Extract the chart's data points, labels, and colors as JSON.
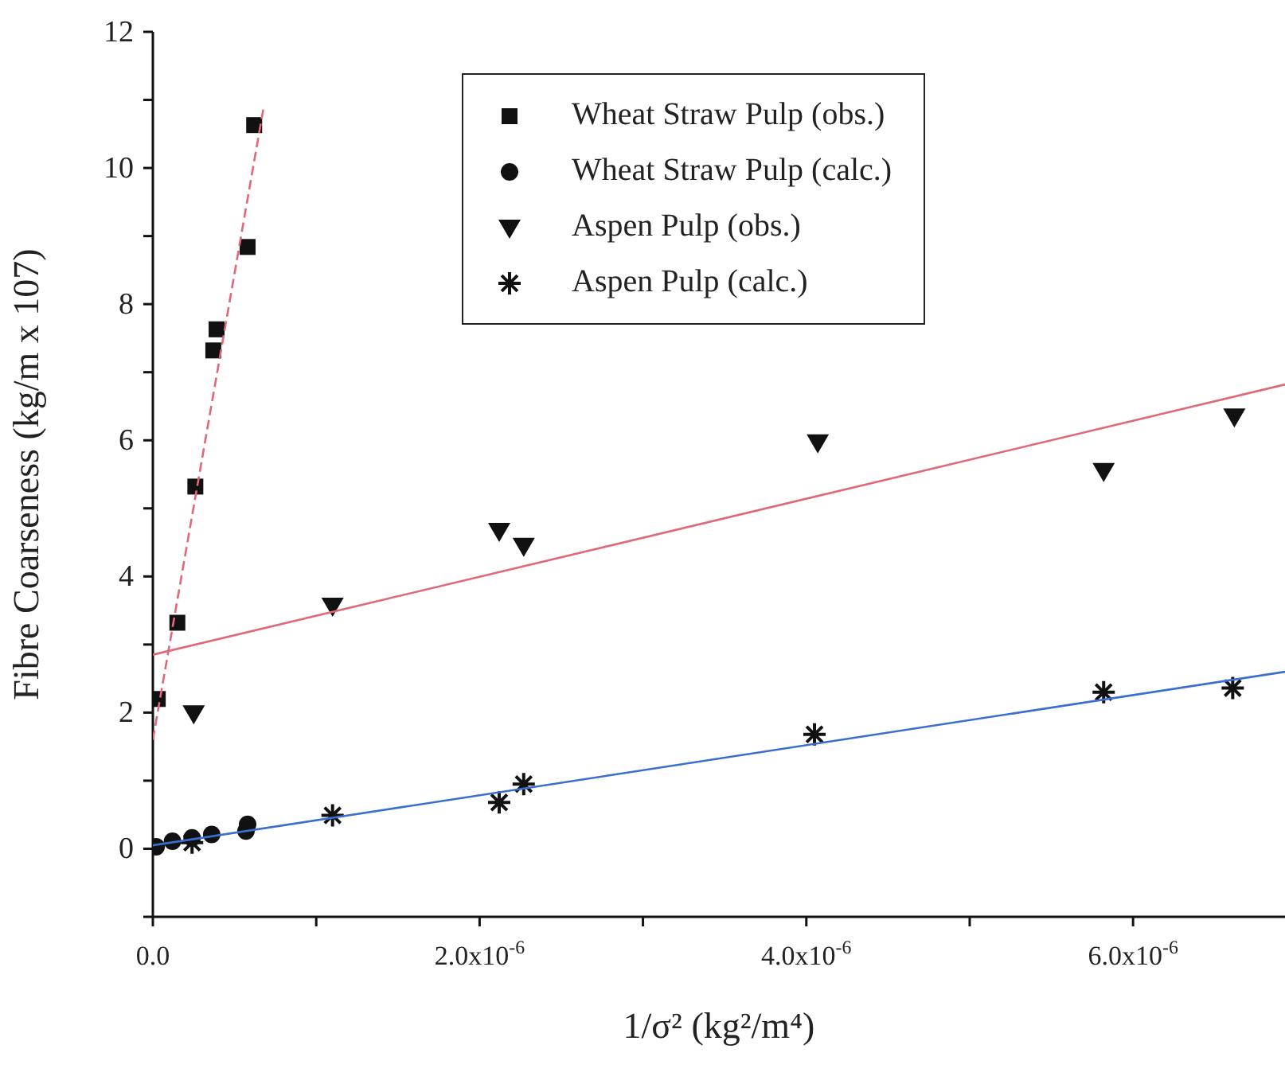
{
  "chart_data": {
    "type": "scatter",
    "xlabel": "1/σ² (kg²/m⁴)",
    "ylabel": "Fibre Coarseness (kg/m x 107)",
    "xlim": [
      0,
      6.93e-06
    ],
    "ylim": [
      -1,
      12
    ],
    "xticks": [
      {
        "value": 0,
        "label": "0.0"
      },
      {
        "value": 1e-06,
        "label": null
      },
      {
        "value": 2e-06,
        "label": "2.0x10$^{-6}$"
      },
      {
        "value": 3e-06,
        "label": null
      },
      {
        "value": 4e-06,
        "label": "4.0x10$^{-6}$"
      },
      {
        "value": 5e-06,
        "label": null
      },
      {
        "value": 6e-06,
        "label": "6.0x10$^{-6}$"
      }
    ],
    "yticks": [
      {
        "value": -1,
        "label": null
      },
      0,
      {
        "value": 1,
        "label": null
      },
      2,
      {
        "value": 3,
        "label": null
      },
      4,
      {
        "value": 5,
        "label": null
      },
      6,
      {
        "value": 7,
        "label": null
      },
      8,
      {
        "value": 9,
        "label": null
      },
      10,
      {
        "value": 11,
        "label": null
      },
      12
    ],
    "legend": "top right",
    "series": [
      {
        "name": "Wheat Straw Pulp (obs.)",
        "marker": "square",
        "color": "#111111",
        "x": [
          3e-08,
          1.5e-07,
          2.6e-07,
          3.7e-07,
          3.9e-07,
          5.8e-07,
          6.2e-07
        ],
        "values": [
          2.2,
          3.32,
          5.32,
          7.32,
          7.63,
          8.84,
          10.63
        ]
      },
      {
        "name": "Wheat Straw Pulp (calc.)",
        "marker": "circle",
        "color": "#111111",
        "x": [
          2e-08,
          1.2e-07,
          2.4e-07,
          3.6e-07,
          5.7e-07,
          5.8e-07
        ],
        "values": [
          0.03,
          0.11,
          0.16,
          0.21,
          0.26,
          0.36
        ]
      },
      {
        "name": "Aspen Pulp (obs.)",
        "marker": "triangle",
        "color": "#111111",
        "x": [
          2.5e-07,
          1.1e-06,
          2.12e-06,
          2.27e-06,
          4.07e-06,
          5.82e-06,
          6.62e-06
        ],
        "values": [
          1.99,
          3.57,
          4.67,
          4.45,
          5.97,
          5.55,
          6.35
        ]
      },
      {
        "name": "Aspen Pulp (calc.)",
        "marker": "cross",
        "color": "#111111",
        "x": [
          2.4e-07,
          1.1e-06,
          2.12e-06,
          2.27e-06,
          4.05e-06,
          5.82e-06,
          6.61e-06
        ],
        "values": [
          0.09,
          0.49,
          0.68,
          0.95,
          1.68,
          2.3,
          2.36
        ]
      },
      {
        "type": "line",
        "marker": "none",
        "line_style": "dashed",
        "color": "#e06878",
        "x": [
          0,
          6.8e-07
        ],
        "values": [
          1.6,
          10.92
        ]
      },
      {
        "type": "line",
        "marker": "none",
        "line_style": "solid",
        "color": "#e06878",
        "x": [
          0,
          6.93e-06
        ],
        "values": [
          2.85,
          6.82
        ]
      },
      {
        "type": "line",
        "marker": "none",
        "line_style": "solid",
        "color": "#3a6fd0",
        "x": [
          0,
          6.93e-06
        ],
        "values": [
          0.05,
          2.6
        ]
      }
    ]
  }
}
